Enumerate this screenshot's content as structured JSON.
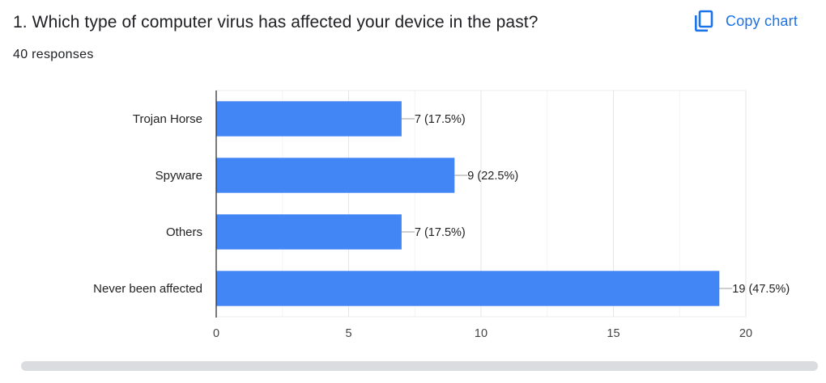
{
  "question": {
    "title": "1. Which type of computer virus has affected your device in the past?",
    "responses": "40 responses"
  },
  "copy_chart": {
    "label": "Copy chart",
    "icon": "copy-icon",
    "color": "#1a73e8"
  },
  "chart_data": {
    "type": "bar",
    "orientation": "horizontal",
    "categories": [
      "Trojan Horse",
      "Spyware",
      "Others",
      "Never been affected"
    ],
    "values": [
      7,
      9,
      7,
      19
    ],
    "value_labels": [
      "7 (17.5%)",
      "9 (22.5%)",
      "7 (17.5%)",
      "19 (47.5%)"
    ],
    "xlim": [
      0,
      20
    ],
    "xticks": [
      0,
      5,
      10,
      15,
      20
    ],
    "grid": true,
    "bar_color": "#4285f4"
  }
}
